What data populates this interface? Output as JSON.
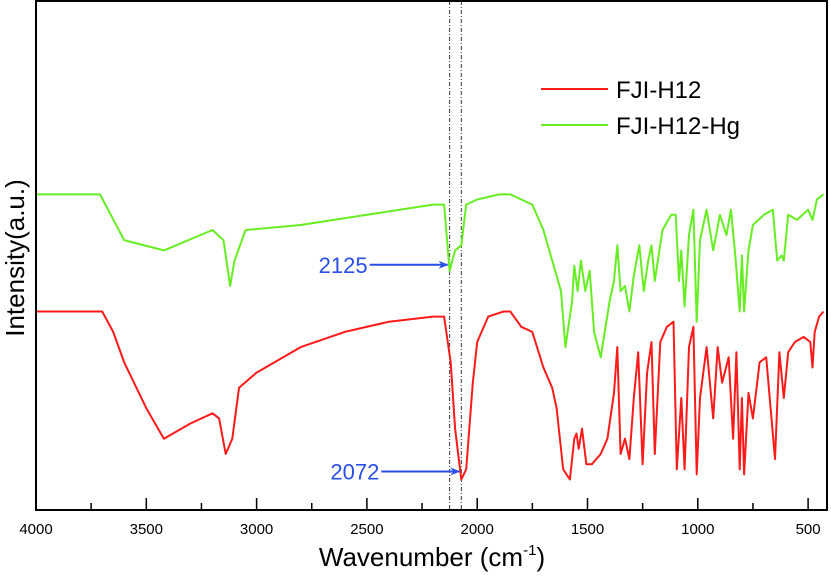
{
  "chart_data": {
    "type": "line",
    "title": "",
    "xlabel": "Wavenumber (cm",
    "xlabel_sup": "-1",
    "xlabel_close": ")",
    "ylabel": "Intensity(a.u.)",
    "xlim": [
      4000,
      430
    ],
    "ylim": [
      0,
      100
    ],
    "x_ticks": [
      4000,
      3500,
      3000,
      2500,
      2000,
      1500,
      1000,
      500
    ],
    "x_tick_labels": [
      "4000",
      "3500",
      "3000",
      "2500",
      "2000",
      "1500",
      "1000",
      "500"
    ],
    "x_minor_ticks": [
      3750,
      3250,
      2750,
      2250,
      1750,
      1250,
      750
    ],
    "grid": false,
    "legend_position": "top-right",
    "series": [
      {
        "name": "FJI-H12",
        "color": "#ff1a1a",
        "x": [
          4000,
          3700,
          3650,
          3600,
          3500,
          3420,
          3300,
          3200,
          3170,
          3140,
          3110,
          3080,
          3000,
          2800,
          2600,
          2400,
          2200,
          2150,
          2120,
          2100,
          2072,
          2050,
          2020,
          2000,
          1950,
          1880,
          1850,
          1800,
          1750,
          1700,
          1660,
          1640,
          1610,
          1580,
          1560,
          1550,
          1540,
          1525,
          1505,
          1480,
          1440,
          1410,
          1380,
          1365,
          1350,
          1330,
          1310,
          1290,
          1270,
          1250,
          1230,
          1210,
          1195,
          1170,
          1140,
          1110,
          1095,
          1075,
          1060,
          1040,
          1020,
          1005,
          990,
          960,
          930,
          910,
          890,
          860,
          840,
          825,
          810,
          800,
          790,
          770,
          750,
          720,
          690,
          650,
          630,
          610,
          590,
          560,
          520,
          490,
          480,
          470,
          450,
          430
        ],
        "y": [
          39,
          39,
          35,
          29,
          20,
          14,
          17,
          19,
          18,
          11,
          14,
          24,
          27,
          32,
          35,
          37,
          38,
          38,
          29,
          16,
          6,
          8,
          25,
          33,
          38,
          39,
          39,
          36,
          35,
          28,
          24,
          20,
          8,
          6,
          14,
          15,
          12,
          16,
          9,
          9,
          11,
          14,
          23,
          32,
          11,
          14,
          10,
          22,
          31,
          9,
          27,
          33,
          11,
          33,
          36,
          37,
          8,
          22,
          8,
          32,
          36,
          7,
          22,
          32,
          18,
          32,
          25,
          30,
          14,
          31,
          8,
          22,
          7,
          23,
          18,
          29,
          30,
          10,
          31,
          22,
          31,
          33,
          34,
          33,
          28,
          35,
          38,
          39
        ]
      },
      {
        "name": "FJI-H12-Hg",
        "color": "#66ee22",
        "x": [
          4000,
          3710,
          3600,
          3420,
          3200,
          3150,
          3120,
          3100,
          3050,
          2800,
          2500,
          2200,
          2150,
          2125,
          2100,
          2072,
          2050,
          2000,
          1900,
          1850,
          1750,
          1700,
          1620,
          1600,
          1570,
          1560,
          1545,
          1530,
          1510,
          1490,
          1470,
          1440,
          1400,
          1380,
          1365,
          1350,
          1330,
          1310,
          1290,
          1265,
          1245,
          1225,
          1210,
          1195,
          1160,
          1120,
          1100,
          1085,
          1075,
          1060,
          1040,
          1020,
          1005,
          990,
          960,
          930,
          900,
          870,
          850,
          830,
          810,
          800,
          790,
          770,
          750,
          700,
          660,
          640,
          620,
          610,
          590,
          550,
          500,
          480,
          460,
          430
        ],
        "y": [
          62,
          62,
          53,
          51,
          55,
          53,
          44,
          49,
          55,
          56,
          58,
          60,
          60,
          47,
          51,
          52,
          60,
          61,
          62,
          62,
          60,
          55,
          43,
          32,
          41,
          48,
          43,
          49,
          43,
          47,
          35,
          30,
          41,
          45,
          52,
          43,
          44,
          39,
          46,
          52,
          43,
          49,
          52,
          45,
          55,
          58,
          58,
          45,
          51,
          40,
          54,
          59,
          37,
          53,
          59,
          51,
          58,
          54,
          59,
          50,
          39,
          50,
          39,
          51,
          56,
          58,
          59,
          49,
          50,
          49,
          58,
          57,
          59,
          57,
          61,
          62
        ]
      }
    ],
    "annotations": [
      {
        "text": "2125",
        "x": 2125,
        "series": "FJI-H12-Hg",
        "color": "#2a4ee8"
      },
      {
        "text": "2072",
        "x": 2072,
        "series": "FJI-H12",
        "color": "#2a4ee8"
      }
    ],
    "reference_lines_x": [
      2125,
      2072
    ]
  }
}
